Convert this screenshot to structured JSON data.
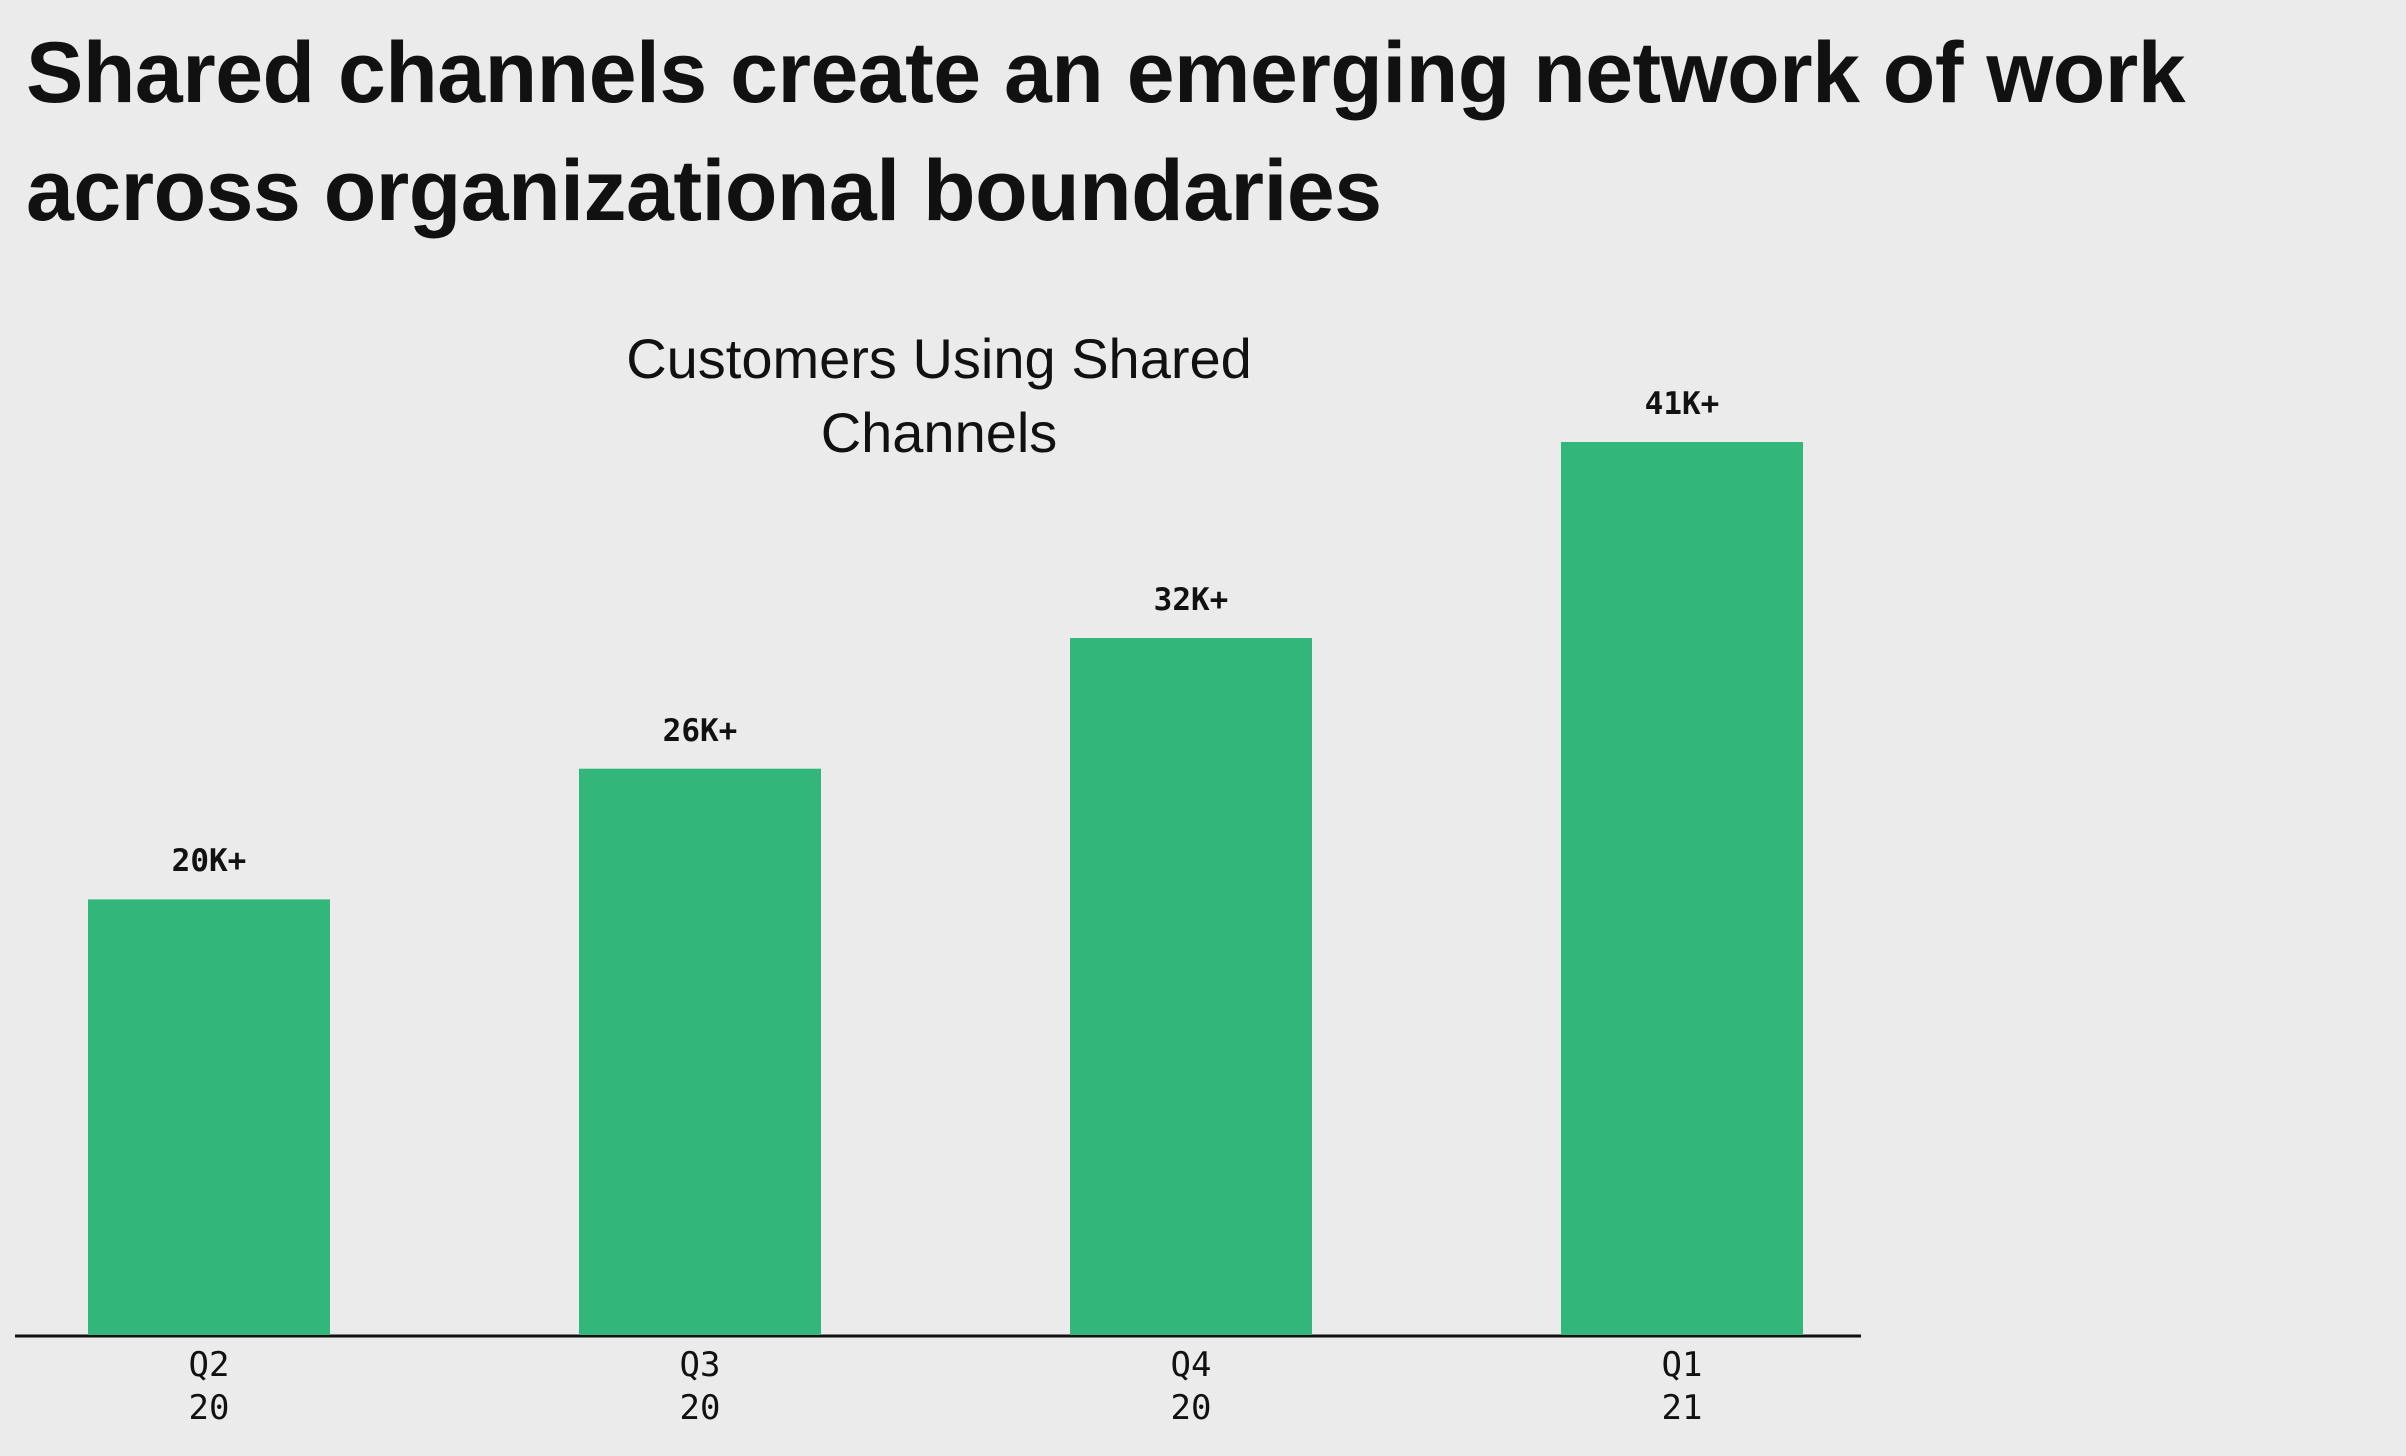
{
  "chart_data": {
    "type": "bar",
    "title": "Shared channels create an emerging network of work across organizational boundaries",
    "subtitle": "Customers Using Shared Channels",
    "categories": [
      "Q2 20",
      "Q3 20",
      "Q4 20",
      "Q1 21"
    ],
    "values": [
      20000,
      26000,
      32000,
      41000
    ],
    "value_labels": [
      "20K+",
      "26K+",
      "32K+",
      "41K+"
    ],
    "color": "#32b67a"
  }
}
